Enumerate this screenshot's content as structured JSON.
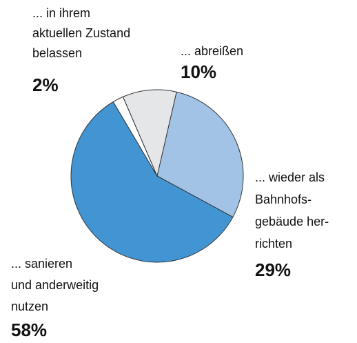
{
  "chart_data": {
    "type": "pie",
    "categories": [
      [
        "... wieder als",
        "Bahnhofs-",
        "gebäude her-",
        "richten"
      ],
      [
        "... sanieren",
        "und anderweitig",
        "nutzen"
      ],
      [
        "... in ihrem",
        "aktuellen Zustand",
        "belassen"
      ],
      [
        "... abreißen"
      ]
    ],
    "values": [
      29,
      58,
      2,
      10
    ],
    "value_labels": [
      "29%",
      "58%",
      "2%",
      "10%"
    ],
    "colors": [
      "#a3c3e6",
      "#4394d2",
      "#ffffff",
      "#e4e6e8"
    ]
  }
}
